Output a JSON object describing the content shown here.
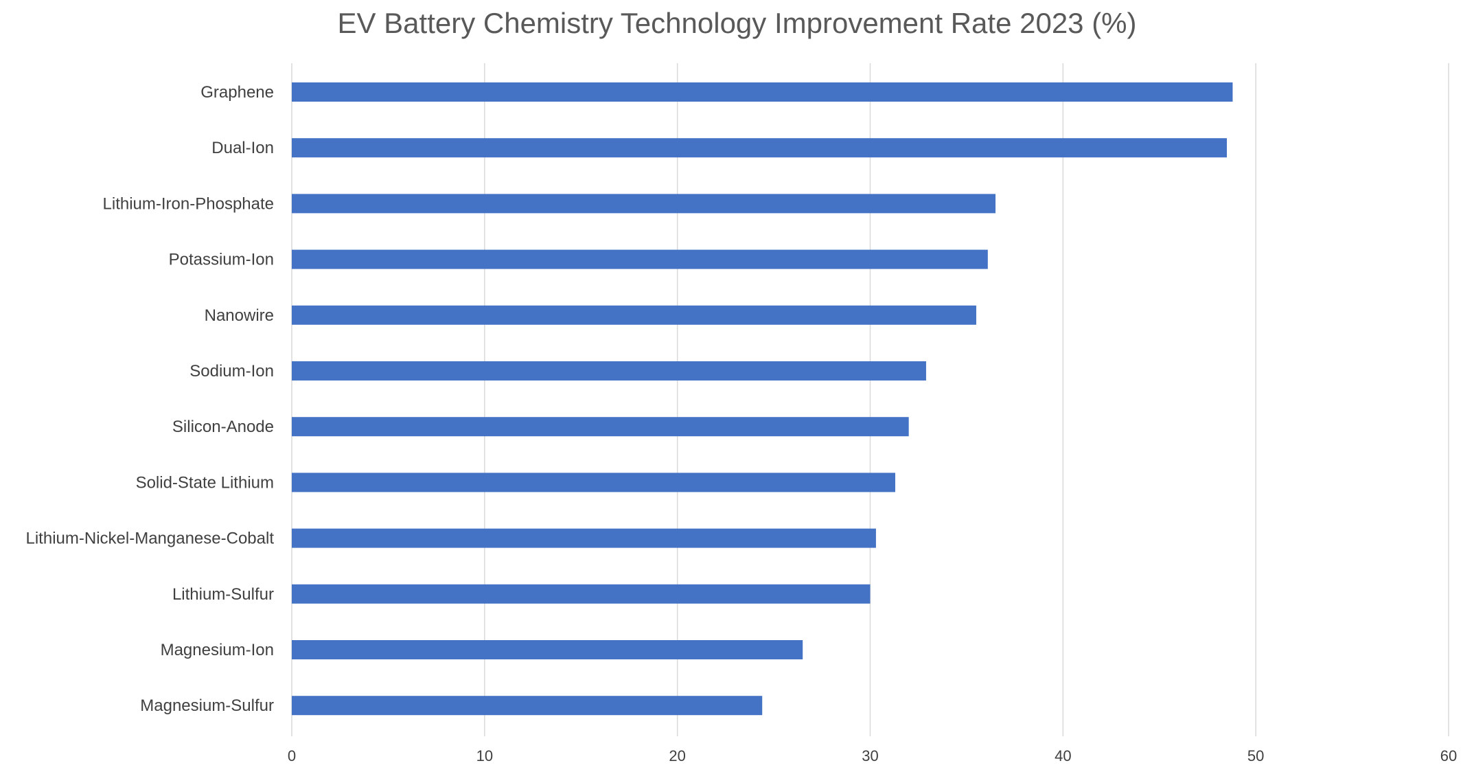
{
  "chart_data": {
    "type": "bar",
    "orientation": "horizontal",
    "title": "EV Battery Chemistry Technology Improvement Rate 2023 (%)",
    "xlabel": "",
    "ylabel": "",
    "categories": [
      "Graphene",
      "Dual-Ion",
      "Lithium-Iron-Phosphate",
      "Potassium-Ion",
      "Nanowire",
      "Sodium-Ion",
      "Silicon-Anode",
      "Solid-State Lithium",
      "Lithium-Nickel-Manganese-Cobalt",
      "Lithium-Sulfur",
      "Magnesium-Ion",
      "Magnesium-Sulfur"
    ],
    "values": [
      48.8,
      48.5,
      36.5,
      36.1,
      35.5,
      32.9,
      32.0,
      31.3,
      30.3,
      30.0,
      26.5,
      24.4
    ],
    "xlim": [
      0,
      60
    ],
    "xticks": [
      "0",
      "10",
      "20",
      "30",
      "40",
      "50",
      "60"
    ],
    "grid": "vertical",
    "legend": "none",
    "bar_color": "#4472C4",
    "grid_color": "#D9D9D9"
  }
}
